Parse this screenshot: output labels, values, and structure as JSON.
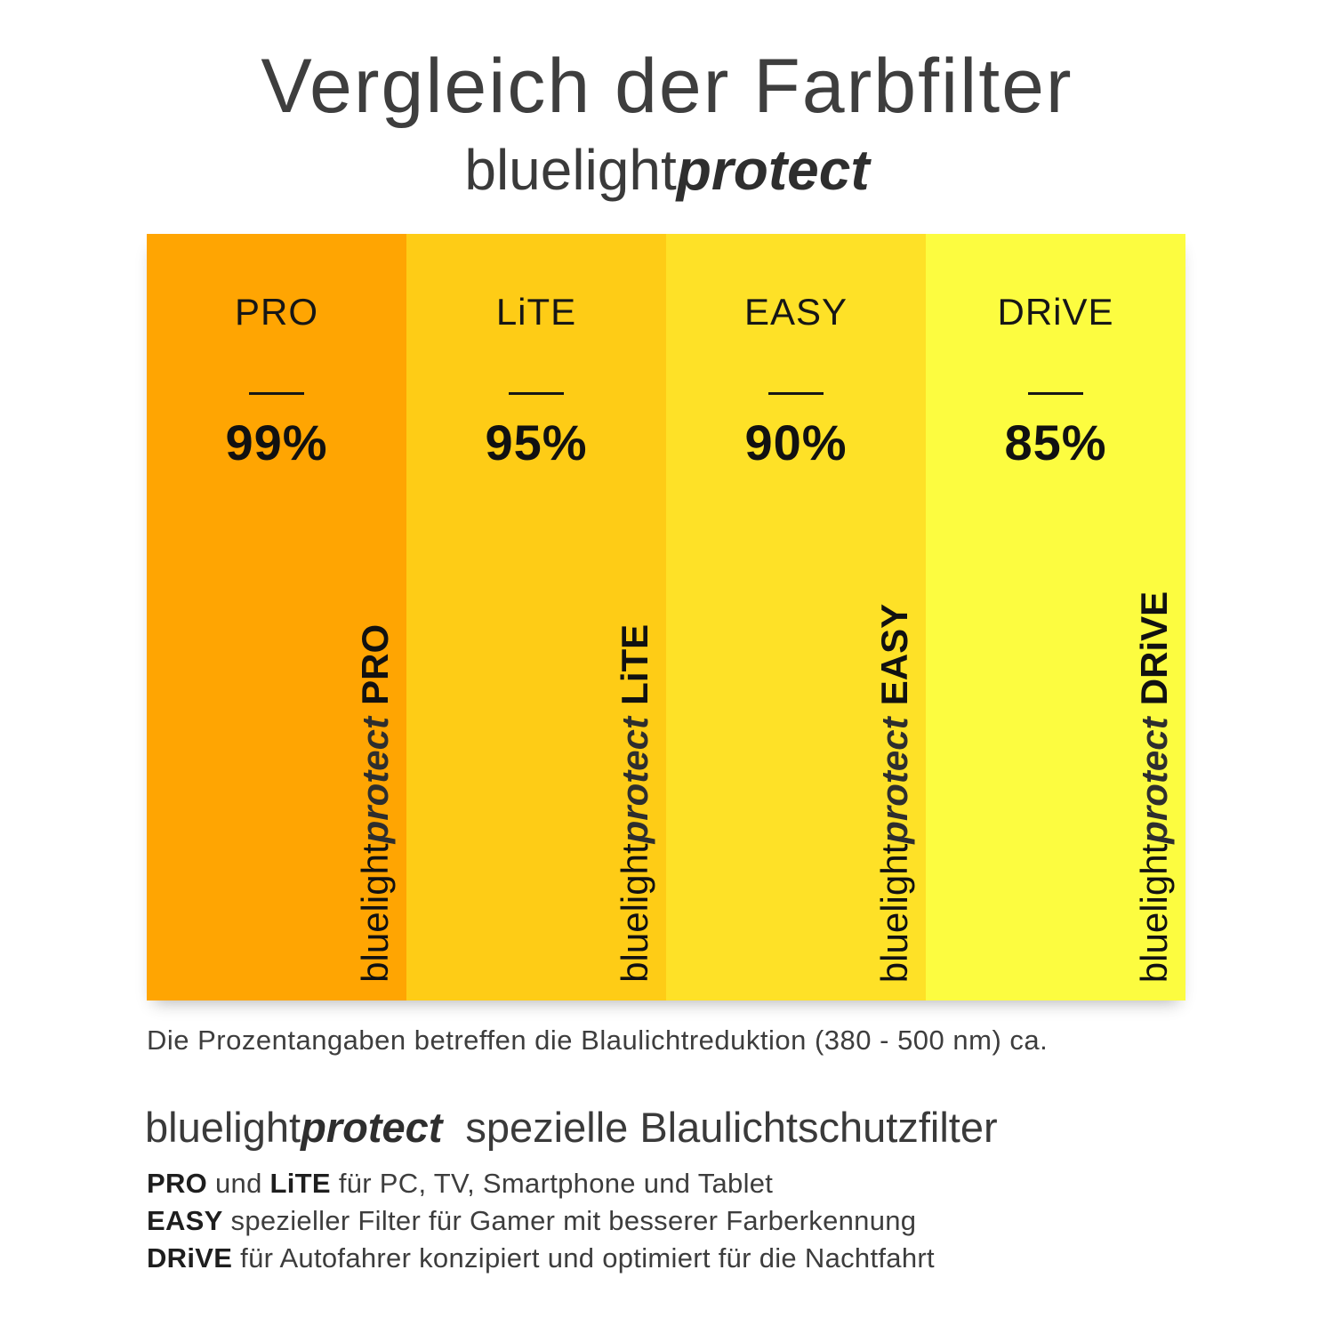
{
  "title": "Vergleich der Farbfilter",
  "brand": {
    "light": "bluelight",
    "bold": "protect"
  },
  "columns": [
    {
      "name": "PRO",
      "percent": "99%",
      "color": "#FFA502",
      "label_light": "bluelight",
      "label_bold_italic": "protect",
      "label_suffix": "PRO"
    },
    {
      "name": "LiTE",
      "percent": "95%",
      "color": "#FECC16",
      "label_light": "bluelight",
      "label_bold_italic": "protect",
      "label_suffix": "LiTE"
    },
    {
      "name": "EASY",
      "percent": "90%",
      "color": "#FEE127",
      "label_light": "bluelight",
      "label_bold_italic": "protect",
      "label_suffix": "EASY"
    },
    {
      "name": "DRiVE",
      "percent": "85%",
      "color": "#FCFC40",
      "label_light": "bluelight",
      "label_bold_italic": "protect",
      "label_suffix": "DRiVE"
    }
  ],
  "footnote": "Die Prozentangaben betreffen die Blaulichtreduktion (380 - 500 nm) ca.",
  "description": {
    "heading_light": "bluelight",
    "heading_bold_italic": "protect",
    "heading_rest": "spezielle Blaulichtschutzfilter",
    "lines": [
      {
        "segments": [
          {
            "text": "PRO",
            "bold": true
          },
          {
            "text": " und ",
            "bold": false
          },
          {
            "text": "LiTE",
            "bold": true
          },
          {
            "text": " für PC, TV, Smartphone und Tablet",
            "bold": false
          }
        ]
      },
      {
        "segments": [
          {
            "text": "EASY",
            "bold": true
          },
          {
            "text": " spezieller Filter für Gamer mit besserer Farberkennung",
            "bold": false
          }
        ]
      },
      {
        "segments": [
          {
            "text": "DRiVE",
            "bold": true
          },
          {
            "text": " für Autofahrer konzipiert und optimiert für die Nachtfahrt",
            "bold": false
          }
        ]
      }
    ]
  },
  "chart_data": {
    "type": "bar",
    "title": "Vergleich der Farbfilter bluelightprotect",
    "categories": [
      "PRO",
      "LiTE",
      "EASY",
      "DRiVE"
    ],
    "values": [
      99,
      95,
      90,
      85
    ],
    "value_unit": "%",
    "value_meaning": "Blaulichtreduktion (380 - 500 nm) ca.",
    "colors": [
      "#FFA502",
      "#FECC16",
      "#FEE127",
      "#FCFC40"
    ],
    "layout": "four equal-height color swatch columns with percentage text labels, no axes, no grid, no legend"
  }
}
